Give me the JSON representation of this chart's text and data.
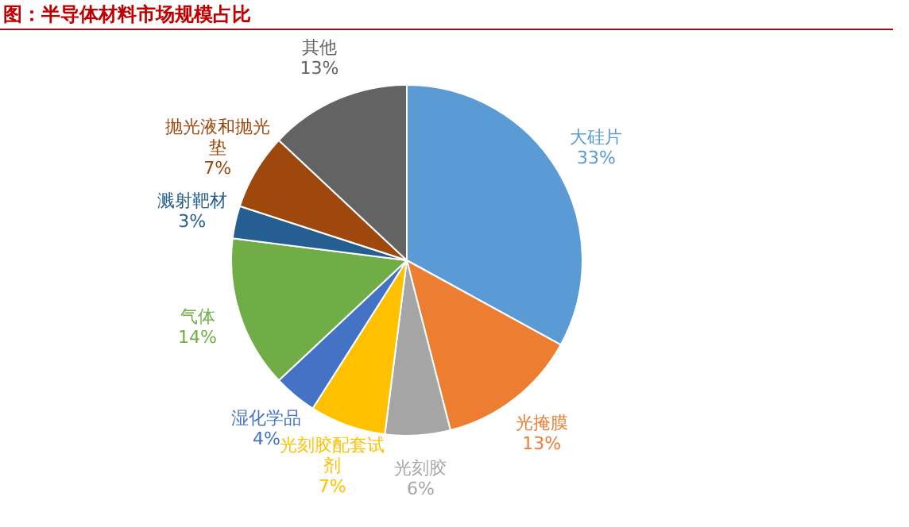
{
  "chart_data": {
    "type": "pie",
    "title": "图：半导体材料市场规模占比",
    "categories": [
      "大硅片",
      "光掩膜",
      "光刻胶",
      "光刻胶配套试剂",
      "湿化学品",
      "气体",
      "溅射靶材",
      "抛光液和抛光垫",
      "其他"
    ],
    "values": [
      33,
      13,
      6,
      7,
      4,
      14,
      3,
      7,
      13
    ],
    "value_labels": [
      "33%",
      "13%",
      "6%",
      "7%",
      "4%",
      "14%",
      "3%",
      "7%",
      "13%"
    ],
    "colors": [
      "#5b9bd5",
      "#ed7d31",
      "#a5a5a5",
      "#ffc000",
      "#4472c4",
      "#70ad47",
      "#255e91",
      "#9e480e",
      "#636363"
    ],
    "legend": false
  }
}
